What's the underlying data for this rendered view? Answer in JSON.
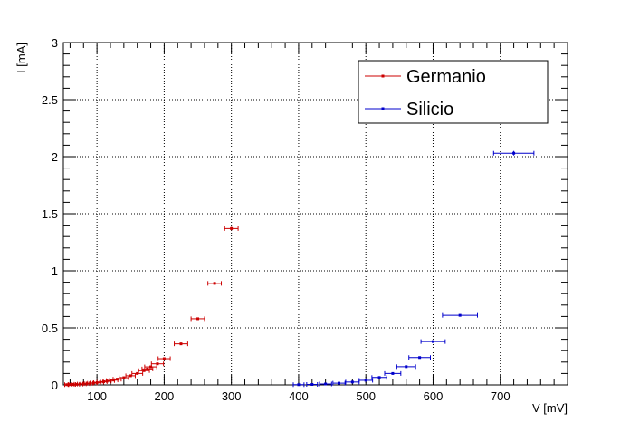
{
  "chart_data": {
    "type": "scatter",
    "title": "",
    "xlabel": "V [mV]",
    "ylabel": "I [mA]",
    "xlim": [
      50,
      800
    ],
    "ylim": [
      0,
      3
    ],
    "x_ticks": [
      "100",
      "200",
      "300",
      "400",
      "500",
      "600",
      "700"
    ],
    "y_ticks": [
      "0",
      "0.5",
      "1",
      "1.5",
      "2",
      "2.5",
      "3"
    ],
    "x_tick_values": [
      100,
      200,
      300,
      400,
      500,
      600,
      700
    ],
    "y_tick_values": [
      0,
      0.5,
      1,
      1.5,
      2,
      2.5,
      3
    ],
    "grid": true,
    "legend_position": "top-right",
    "series": [
      {
        "name": "Germanio",
        "color": "#cc0000",
        "points": [
          {
            "x": 55,
            "y": 0.002,
            "xerr": 3,
            "yerr": 0.002
          },
          {
            "x": 60,
            "y": 0.003,
            "xerr": 3,
            "yerr": 0.002
          },
          {
            "x": 65,
            "y": 0.004,
            "xerr": 3,
            "yerr": 0.002
          },
          {
            "x": 70,
            "y": 0.005,
            "xerr": 4,
            "yerr": 0.002
          },
          {
            "x": 75,
            "y": 0.007,
            "xerr": 4,
            "yerr": 0.002
          },
          {
            "x": 80,
            "y": 0.009,
            "xerr": 4,
            "yerr": 0.002
          },
          {
            "x": 85,
            "y": 0.011,
            "xerr": 4,
            "yerr": 0.002
          },
          {
            "x": 90,
            "y": 0.014,
            "xerr": 4,
            "yerr": 0.002
          },
          {
            "x": 95,
            "y": 0.017,
            "xerr": 5,
            "yerr": 0.002
          },
          {
            "x": 100,
            "y": 0.02,
            "xerr": 5,
            "yerr": 0.003
          },
          {
            "x": 105,
            "y": 0.024,
            "xerr": 5,
            "yerr": 0.003
          },
          {
            "x": 110,
            "y": 0.028,
            "xerr": 5,
            "yerr": 0.003
          },
          {
            "x": 115,
            "y": 0.033,
            "xerr": 6,
            "yerr": 0.003
          },
          {
            "x": 120,
            "y": 0.038,
            "xerr": 6,
            "yerr": 0.003
          },
          {
            "x": 125,
            "y": 0.043,
            "xerr": 6,
            "yerr": 0.003
          },
          {
            "x": 130,
            "y": 0.05,
            "xerr": 6,
            "yerr": 0.003
          },
          {
            "x": 140,
            "y": 0.063,
            "xerr": 7,
            "yerr": 0.004
          },
          {
            "x": 150,
            "y": 0.08,
            "xerr": 7,
            "yerr": 0.004
          },
          {
            "x": 160,
            "y": 0.1,
            "xerr": 8,
            "yerr": 0.005
          },
          {
            "x": 170,
            "y": 0.125,
            "xerr": 8,
            "yerr": 0.005
          },
          {
            "x": 175,
            "y": 0.14,
            "xerr": 8,
            "yerr": 0.005
          },
          {
            "x": 180,
            "y": 0.158,
            "xerr": 9,
            "yerr": 0.005
          },
          {
            "x": 190,
            "y": 0.185,
            "xerr": 9,
            "yerr": 0.006
          },
          {
            "x": 200,
            "y": 0.23,
            "xerr": 9,
            "yerr": 0.006
          },
          {
            "x": 225,
            "y": 0.36,
            "xerr": 10,
            "yerr": 0.008
          },
          {
            "x": 250,
            "y": 0.58,
            "xerr": 10,
            "yerr": 0.01
          },
          {
            "x": 275,
            "y": 0.89,
            "xerr": 10,
            "yerr": 0.012
          },
          {
            "x": 300,
            "y": 1.37,
            "xerr": 10,
            "yerr": 0.015
          }
        ]
      },
      {
        "name": "Silicio",
        "color": "#0000cc",
        "points": [
          {
            "x": 400,
            "y": 0.002,
            "xerr": 8,
            "yerr": 0.002
          },
          {
            "x": 420,
            "y": 0.004,
            "xerr": 8,
            "yerr": 0.002
          },
          {
            "x": 440,
            "y": 0.008,
            "xerr": 9,
            "yerr": 0.002
          },
          {
            "x": 460,
            "y": 0.015,
            "xerr": 9,
            "yerr": 0.003
          },
          {
            "x": 480,
            "y": 0.025,
            "xerr": 10,
            "yerr": 0.003
          },
          {
            "x": 500,
            "y": 0.04,
            "xerr": 10,
            "yerr": 0.004
          },
          {
            "x": 520,
            "y": 0.065,
            "xerr": 11,
            "yerr": 0.005
          },
          {
            "x": 540,
            "y": 0.1,
            "xerr": 12,
            "yerr": 0.005
          },
          {
            "x": 560,
            "y": 0.16,
            "xerr": 14,
            "yerr": 0.006
          },
          {
            "x": 580,
            "y": 0.24,
            "xerr": 16,
            "yerr": 0.007
          },
          {
            "x": 600,
            "y": 0.38,
            "xerr": 18,
            "yerr": 0.008
          },
          {
            "x": 640,
            "y": 0.61,
            "xerr": 26,
            "yerr": 0.01
          },
          {
            "x": 720,
            "y": 2.03,
            "xerr": 30,
            "yerr": 0.02
          }
        ]
      }
    ]
  }
}
